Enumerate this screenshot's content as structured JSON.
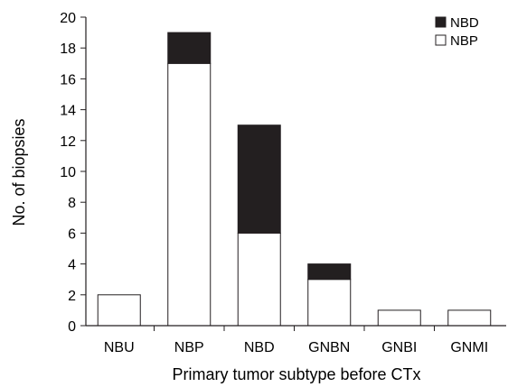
{
  "chart_data": {
    "type": "bar",
    "stacked": true,
    "categories": [
      "NBU",
      "NBP",
      "NBD",
      "GNBN",
      "GNBI",
      "GNMI"
    ],
    "series": [
      {
        "name": "NBP",
        "values": [
          2,
          17,
          6,
          3,
          1,
          1
        ],
        "color": "#ffffff"
      },
      {
        "name": "NBD",
        "values": [
          0,
          2,
          7,
          1,
          0,
          0
        ],
        "color": "#231f20"
      }
    ],
    "title": "",
    "xlabel": "Primary tumor subtype before CTx",
    "ylabel": "No. of biopsies",
    "ylim": [
      0,
      20
    ],
    "yticks": [
      0,
      2,
      4,
      6,
      8,
      10,
      12,
      14,
      16,
      18,
      20
    ],
    "grid": false,
    "legend": {
      "position": "top-right",
      "entries": [
        {
          "label": "NBD",
          "marker": "filled-square",
          "color": "#231f20"
        },
        {
          "label": "NBP",
          "marker": "open-square",
          "color": "#ffffff"
        }
      ]
    }
  }
}
